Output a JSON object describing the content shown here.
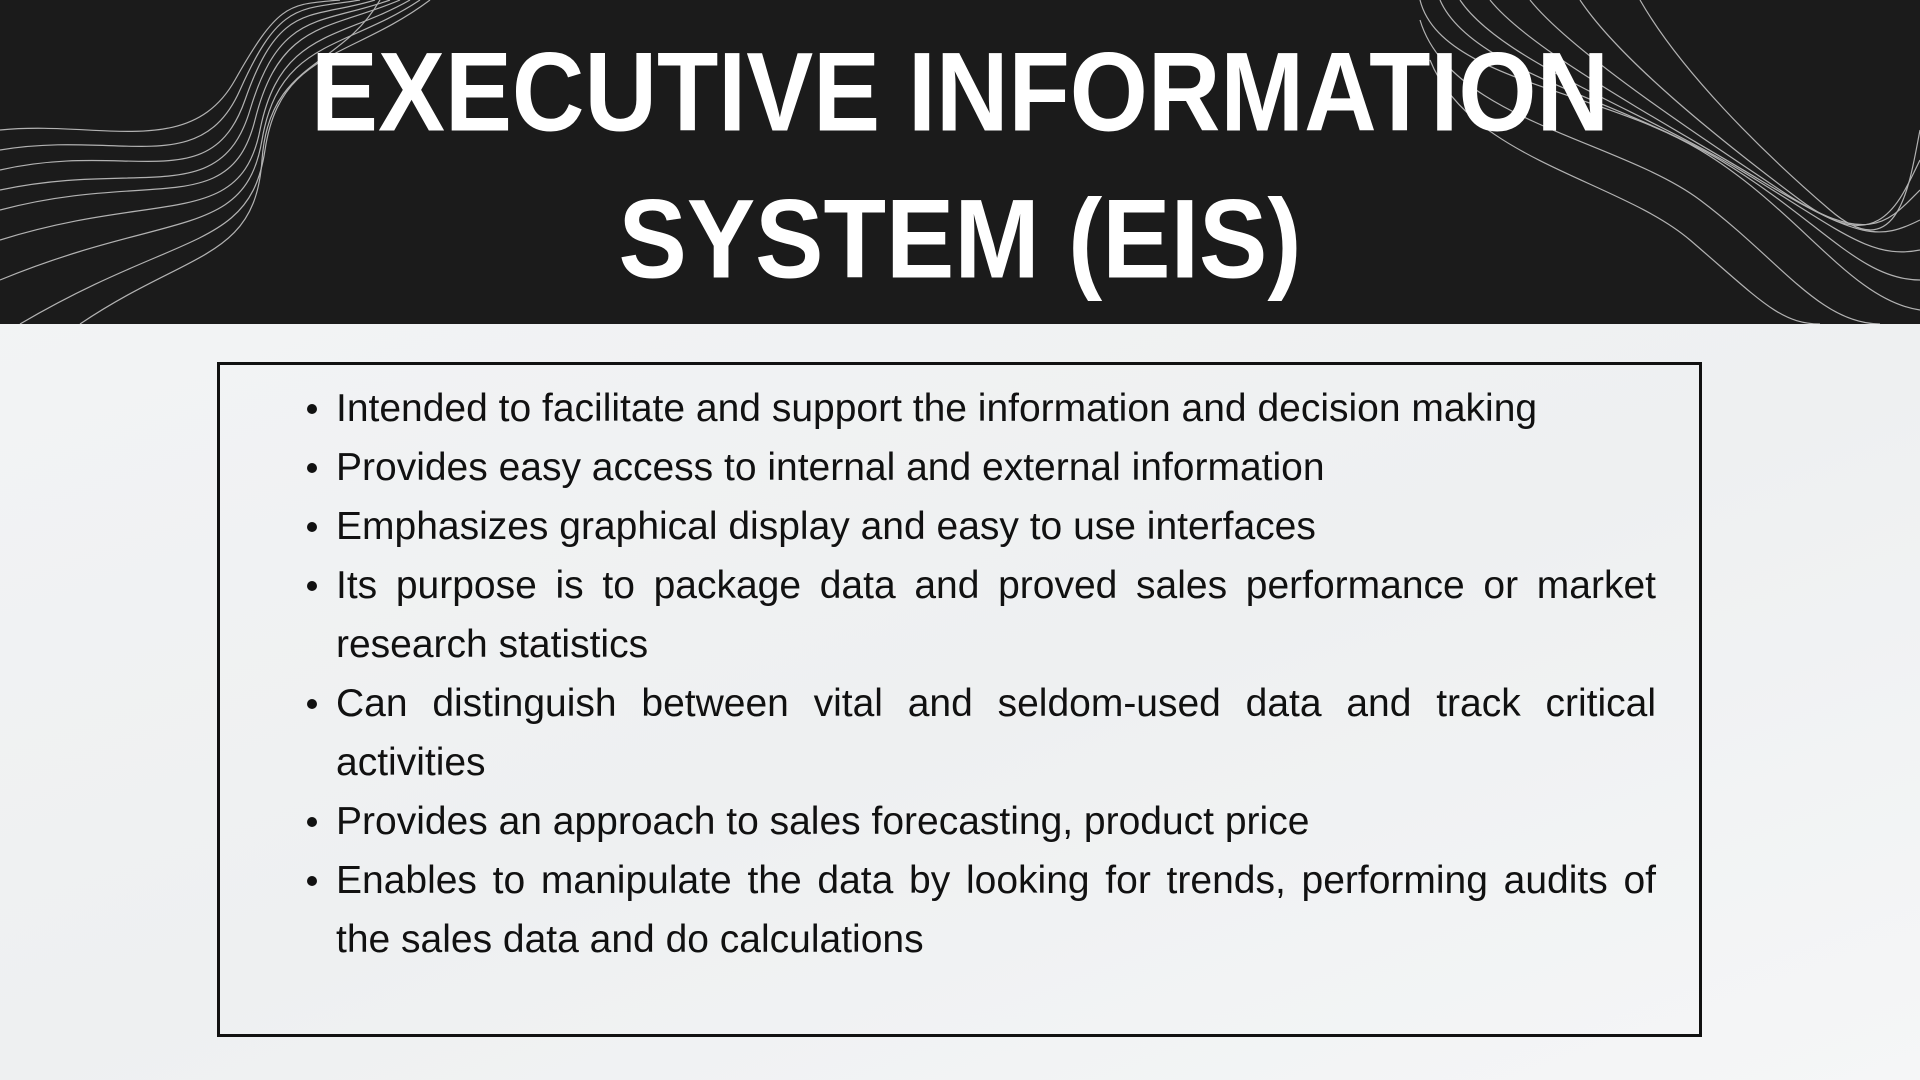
{
  "header": {
    "title_lines": [
      "EXECUTIVE INFORMATION",
      "SYSTEM (EIS)"
    ]
  },
  "bullets": [
    "Intended to facilitate and support the information and decision making",
    "Provides easy access to internal and external information",
    "Emphasizes graphical display and easy to use interfaces",
    "Its purpose is to package data and proved sales performance or market research statistics",
    "Can distinguish between vital and seldom-used data and track critical activities",
    "Provides an approach to sales forecasting, product price",
    "Enables to manipulate the data by looking for trends, performing audits of the sales data and do calculations"
  ]
}
